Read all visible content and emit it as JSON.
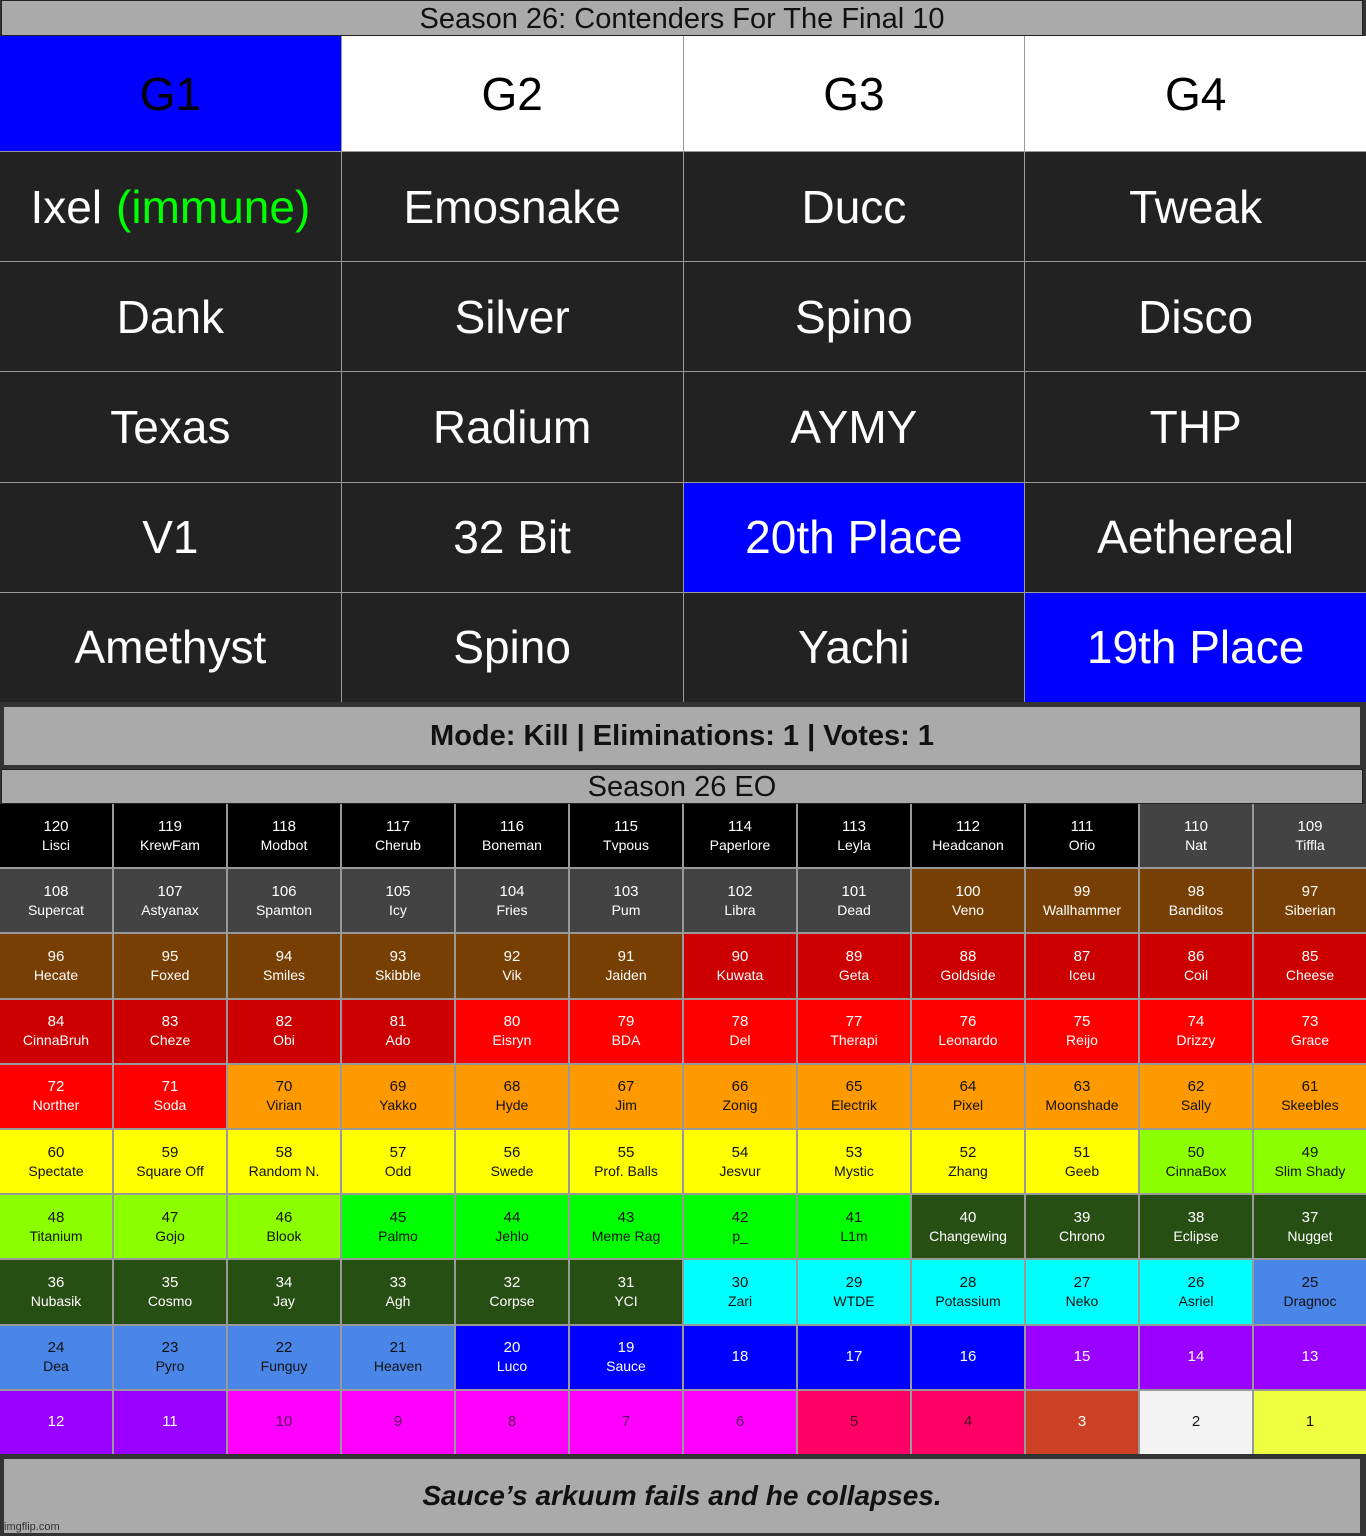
{
  "title": "Season 26: Contenders For The Final 10",
  "groups": {
    "headers": [
      {
        "label": "G1",
        "bg": "#0000ff",
        "fg": "#000000"
      },
      {
        "label": "G2",
        "bg": "#ffffff",
        "fg": "#000000"
      },
      {
        "label": "G3",
        "bg": "#ffffff",
        "fg": "#000000"
      },
      {
        "label": "G4",
        "bg": "#ffffff",
        "fg": "#000000"
      }
    ],
    "rows": [
      [
        {
          "name": "Ixel",
          "tag": "(immune)",
          "tag_color": "#00ff00"
        },
        {
          "name": "Emosnake"
        },
        {
          "name": "Ducc"
        },
        {
          "name": "Tweak"
        }
      ],
      [
        {
          "name": "Dank"
        },
        {
          "name": "Silver"
        },
        {
          "name": "Spino"
        },
        {
          "name": "Disco"
        }
      ],
      [
        {
          "name": "Texas"
        },
        {
          "name": "Radium"
        },
        {
          "name": "AYMY"
        },
        {
          "name": "THP"
        }
      ],
      [
        {
          "name": "V1"
        },
        {
          "name": "32 Bit"
        },
        {
          "name": "20th Place",
          "bg": "#0000ff"
        },
        {
          "name": "Aethereal"
        }
      ],
      [
        {
          "name": "Amethyst"
        },
        {
          "name": "Spino"
        },
        {
          "name": "Yachi"
        },
        {
          "name": "19th Place",
          "bg": "#0000ff"
        }
      ]
    ]
  },
  "mode_bar": "Mode: Kill | Eliminations: 1 | Votes: 1",
  "eo_title": "Season 26 EO",
  "palette": {
    "black": {
      "bg": "#000000",
      "fg": "#ffffff"
    },
    "gray": {
      "bg": "#434343",
      "fg": "#ffffff"
    },
    "brown": {
      "bg": "#783f04",
      "fg": "#ffffff"
    },
    "darkred": {
      "bg": "#cc0000",
      "fg": "#ffffff"
    },
    "red": {
      "bg": "#ff0000",
      "fg": "#ffffff"
    },
    "orange": {
      "bg": "#ff9900",
      "fg": "#111111"
    },
    "yellow": {
      "bg": "#ffff00",
      "fg": "#111111"
    },
    "lime": {
      "bg": "#8cff00",
      "fg": "#111111"
    },
    "green": {
      "bg": "#00ff00",
      "fg": "#111111"
    },
    "darkgreen": {
      "bg": "#274e13",
      "fg": "#ffffff"
    },
    "cyan": {
      "bg": "#00ffff",
      "fg": "#111111"
    },
    "lightblue": {
      "bg": "#4a86e8",
      "fg": "#111111"
    },
    "blue": {
      "bg": "#0000ff",
      "fg": "#ffffff"
    },
    "purple": {
      "bg": "#9900ff",
      "fg": "#ffffff"
    },
    "magenta": {
      "bg": "#ff00ff",
      "fg": "#5a005a"
    },
    "pink": {
      "bg": "#ff0066",
      "fg": "#4a0020"
    },
    "rust": {
      "bg": "#cc4125",
      "fg": "#ffffff"
    },
    "white": {
      "bg": "#f3f3f3",
      "fg": "#111111"
    },
    "paleyellow": {
      "bg": "#eeff41",
      "fg": "#111111"
    }
  },
  "eo_cells": [
    {
      "n": "120",
      "name": "Lisci",
      "c": "black"
    },
    {
      "n": "119",
      "name": "KrewFam",
      "c": "black"
    },
    {
      "n": "118",
      "name": "Modbot",
      "c": "black"
    },
    {
      "n": "117",
      "name": "Cherub",
      "c": "black"
    },
    {
      "n": "116",
      "name": "Boneman",
      "c": "black"
    },
    {
      "n": "115",
      "name": "Tvpous",
      "c": "black"
    },
    {
      "n": "114",
      "name": "Paperlore",
      "c": "black"
    },
    {
      "n": "113",
      "name": "Leyla",
      "c": "black"
    },
    {
      "n": "112",
      "name": "Headcanon",
      "c": "black"
    },
    {
      "n": "111",
      "name": "Orio",
      "c": "black"
    },
    {
      "n": "110",
      "name": "Nat",
      "c": "gray"
    },
    {
      "n": "109",
      "name": "Tiffla",
      "c": "gray"
    },
    {
      "n": "108",
      "name": "Supercat",
      "c": "gray"
    },
    {
      "n": "107",
      "name": "Astyanax",
      "c": "gray"
    },
    {
      "n": "106",
      "name": "Spamton",
      "c": "gray"
    },
    {
      "n": "105",
      "name": "Icy",
      "c": "gray"
    },
    {
      "n": "104",
      "name": "Fries",
      "c": "gray"
    },
    {
      "n": "103",
      "name": "Pum",
      "c": "gray"
    },
    {
      "n": "102",
      "name": "Libra",
      "c": "gray"
    },
    {
      "n": "101",
      "name": "Dead",
      "c": "gray"
    },
    {
      "n": "100",
      "name": "Veno",
      "c": "brown"
    },
    {
      "n": "99",
      "name": "Wallhammer",
      "c": "brown"
    },
    {
      "n": "98",
      "name": "Banditos",
      "c": "brown"
    },
    {
      "n": "97",
      "name": "Siberian",
      "c": "brown"
    },
    {
      "n": "96",
      "name": "Hecate",
      "c": "brown"
    },
    {
      "n": "95",
      "name": "Foxed",
      "c": "brown"
    },
    {
      "n": "94",
      "name": "Smiles",
      "c": "brown"
    },
    {
      "n": "93",
      "name": "Skibble",
      "c": "brown"
    },
    {
      "n": "92",
      "name": "Vik",
      "c": "brown"
    },
    {
      "n": "91",
      "name": "Jaiden",
      "c": "brown"
    },
    {
      "n": "90",
      "name": "Kuwata",
      "c": "darkred"
    },
    {
      "n": "89",
      "name": "Geta",
      "c": "darkred"
    },
    {
      "n": "88",
      "name": "Goldside",
      "c": "darkred"
    },
    {
      "n": "87",
      "name": "Iceu",
      "c": "darkred"
    },
    {
      "n": "86",
      "name": "Coil",
      "c": "darkred"
    },
    {
      "n": "85",
      "name": "Cheese",
      "c": "darkred"
    },
    {
      "n": "84",
      "name": "CinnaBruh",
      "c": "darkred"
    },
    {
      "n": "83",
      "name": "Cheze",
      "c": "darkred"
    },
    {
      "n": "82",
      "name": "Obi",
      "c": "darkred"
    },
    {
      "n": "81",
      "name": "Ado",
      "c": "darkred"
    },
    {
      "n": "80",
      "name": "Eisryn",
      "c": "red"
    },
    {
      "n": "79",
      "name": "BDA",
      "c": "red"
    },
    {
      "n": "78",
      "name": "Del",
      "c": "red"
    },
    {
      "n": "77",
      "name": "Therapi",
      "c": "red"
    },
    {
      "n": "76",
      "name": "Leonardo",
      "c": "red"
    },
    {
      "n": "75",
      "name": "Reijo",
      "c": "red"
    },
    {
      "n": "74",
      "name": "Drizzy",
      "c": "red"
    },
    {
      "n": "73",
      "name": "Grace",
      "c": "red"
    },
    {
      "n": "72",
      "name": "Norther",
      "c": "red"
    },
    {
      "n": "71",
      "name": "Soda",
      "c": "red"
    },
    {
      "n": "70",
      "name": "Virian",
      "c": "orange"
    },
    {
      "n": "69",
      "name": "Yakko",
      "c": "orange"
    },
    {
      "n": "68",
      "name": "Hyde",
      "c": "orange"
    },
    {
      "n": "67",
      "name": "Jim",
      "c": "orange"
    },
    {
      "n": "66",
      "name": "Zonig",
      "c": "orange"
    },
    {
      "n": "65",
      "name": "Electrik",
      "c": "orange"
    },
    {
      "n": "64",
      "name": "Pixel",
      "c": "orange"
    },
    {
      "n": "63",
      "name": "Moonshade",
      "c": "orange"
    },
    {
      "n": "62",
      "name": "Sally",
      "c": "orange"
    },
    {
      "n": "61",
      "name": "Skeebles",
      "c": "orange"
    },
    {
      "n": "60",
      "name": "Spectate",
      "c": "yellow"
    },
    {
      "n": "59",
      "name": "Square Off",
      "c": "yellow"
    },
    {
      "n": "58",
      "name": "Random N.",
      "c": "yellow"
    },
    {
      "n": "57",
      "name": "Odd",
      "c": "yellow"
    },
    {
      "n": "56",
      "name": "Swede",
      "c": "yellow"
    },
    {
      "n": "55",
      "name": "Prof. Balls",
      "c": "yellow"
    },
    {
      "n": "54",
      "name": "Jesvur",
      "c": "yellow"
    },
    {
      "n": "53",
      "name": "Mystic",
      "c": "yellow"
    },
    {
      "n": "52",
      "name": "Zhang",
      "c": "yellow"
    },
    {
      "n": "51",
      "name": "Geeb",
      "c": "yellow"
    },
    {
      "n": "50",
      "name": "CinnaBox",
      "c": "lime"
    },
    {
      "n": "49",
      "name": "Slim Shady",
      "c": "lime"
    },
    {
      "n": "48",
      "name": "Titanium",
      "c": "lime"
    },
    {
      "n": "47",
      "name": "Gojo",
      "c": "lime"
    },
    {
      "n": "46",
      "name": "Blook",
      "c": "lime"
    },
    {
      "n": "45",
      "name": "Palmo",
      "c": "green"
    },
    {
      "n": "44",
      "name": "Jehlo",
      "c": "green"
    },
    {
      "n": "43",
      "name": "Meme Rag",
      "c": "green"
    },
    {
      "n": "42",
      "name": "p_",
      "c": "green"
    },
    {
      "n": "41",
      "name": "L1m",
      "c": "green"
    },
    {
      "n": "40",
      "name": "Changewing",
      "c": "darkgreen"
    },
    {
      "n": "39",
      "name": "Chrono",
      "c": "darkgreen"
    },
    {
      "n": "38",
      "name": "Eclipse",
      "c": "darkgreen"
    },
    {
      "n": "37",
      "name": "Nugget",
      "c": "darkgreen"
    },
    {
      "n": "36",
      "name": "Nubasik",
      "c": "darkgreen"
    },
    {
      "n": "35",
      "name": "Cosmo",
      "c": "darkgreen"
    },
    {
      "n": "34",
      "name": "Jay",
      "c": "darkgreen"
    },
    {
      "n": "33",
      "name": "Agh",
      "c": "darkgreen"
    },
    {
      "n": "32",
      "name": "Corpse",
      "c": "darkgreen"
    },
    {
      "n": "31",
      "name": "YCI",
      "c": "darkgreen"
    },
    {
      "n": "30",
      "name": "Zari",
      "c": "cyan"
    },
    {
      "n": "29",
      "name": "WTDE",
      "c": "cyan"
    },
    {
      "n": "28",
      "name": "Potassium",
      "c": "cyan"
    },
    {
      "n": "27",
      "name": "Neko",
      "c": "cyan"
    },
    {
      "n": "26",
      "name": "Asriel",
      "c": "cyan"
    },
    {
      "n": "25",
      "name": "Dragnoc",
      "c": "lightblue"
    },
    {
      "n": "24",
      "name": "Dea",
      "c": "lightblue"
    },
    {
      "n": "23",
      "name": "Pyro",
      "c": "lightblue"
    },
    {
      "n": "22",
      "name": "Funguy",
      "c": "lightblue"
    },
    {
      "n": "21",
      "name": "Heaven",
      "c": "lightblue"
    },
    {
      "n": "20",
      "name": "Luco",
      "c": "blue"
    },
    {
      "n": "19",
      "name": "Sauce",
      "c": "blue"
    },
    {
      "n": "18",
      "name": "",
      "c": "blue"
    },
    {
      "n": "17",
      "name": "",
      "c": "blue"
    },
    {
      "n": "16",
      "name": "",
      "c": "blue"
    },
    {
      "n": "15",
      "name": "",
      "c": "purple"
    },
    {
      "n": "14",
      "name": "",
      "c": "purple"
    },
    {
      "n": "13",
      "name": "",
      "c": "purple"
    },
    {
      "n": "12",
      "name": "",
      "c": "purple"
    },
    {
      "n": "11",
      "name": "",
      "c": "purple"
    },
    {
      "n": "10",
      "name": "",
      "c": "magenta"
    },
    {
      "n": "9",
      "name": "",
      "c": "magenta"
    },
    {
      "n": "8",
      "name": "",
      "c": "magenta"
    },
    {
      "n": "7",
      "name": "",
      "c": "magenta"
    },
    {
      "n": "6",
      "name": "",
      "c": "magenta"
    },
    {
      "n": "5",
      "name": "",
      "c": "pink"
    },
    {
      "n": "4",
      "name": "",
      "c": "pink"
    },
    {
      "n": "3",
      "name": "",
      "c": "rust"
    },
    {
      "n": "2",
      "name": "",
      "c": "white"
    },
    {
      "n": "1",
      "name": "",
      "c": "paleyellow"
    }
  ],
  "footer": "Sauce’s arkuum fails and he collapses.",
  "watermark": "imgflip.com"
}
